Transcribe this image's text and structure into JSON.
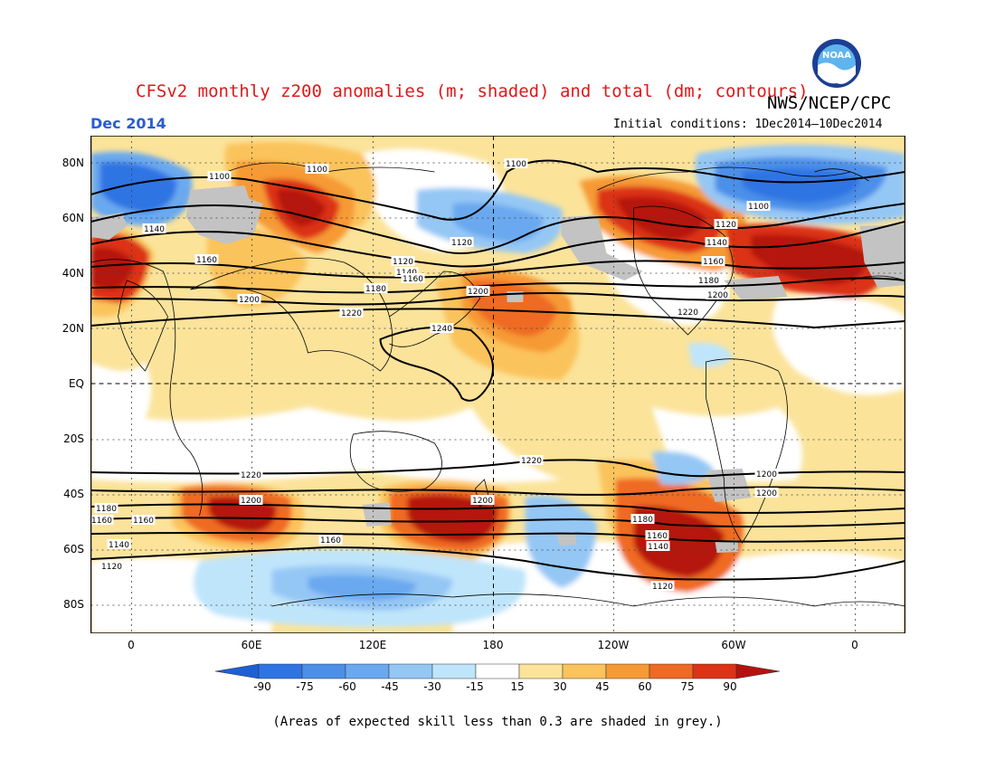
{
  "title": "CFSv2 monthly z200 anomalies (m; shaded) and total (dm; contours)",
  "agency": "NWS/NCEP/CPC",
  "month": "Dec 2014",
  "initial_conditions": "Initial conditions: 1Dec2014—10Dec2014",
  "skill_note": "(Areas of expected skill less than 0.3 are shaded in grey.)",
  "logo_text": "NOAA",
  "lat_labels": [
    "80N",
    "60N",
    "40N",
    "20N",
    "EQ",
    "20S",
    "40S",
    "60S",
    "80S"
  ],
  "lon_labels": [
    "0",
    "60E",
    "120E",
    "180",
    "120W",
    "60W",
    "0"
  ],
  "colorbar_labels": [
    "-90",
    "-75",
    "-60",
    "-45",
    "-30",
    "-15",
    "15",
    "30",
    "45",
    "60",
    "75",
    "90"
  ],
  "colorbar_colors": [
    "#1e5fd6",
    "#2f74e3",
    "#4b8fe8",
    "#6aa9ef",
    "#95c7f5",
    "#bfe5fb",
    "#ffffff",
    "#fbe39a",
    "#fbc35c",
    "#f69a35",
    "#ef6a22",
    "#dc3317",
    "#b5120f"
  ],
  "contour_labels": [
    "1100",
    "1100",
    "1100",
    "1100",
    "1120",
    "1120",
    "1120",
    "1120",
    "1120",
    "1140",
    "1140",
    "1140",
    "1140",
    "1140",
    "1160",
    "1160",
    "1160",
    "1160",
    "1160",
    "1160",
    "1180",
    "1180",
    "1180",
    "1180",
    "1200",
    "1200",
    "1200",
    "1200",
    "1200",
    "1200",
    "1200",
    "1220",
    "1220",
    "1220",
    "1220",
    "1240",
    "1160"
  ],
  "colors": {
    "title": "#e01818",
    "month": "#2a5bd7",
    "skill_grey": "#c3c3c3"
  }
}
